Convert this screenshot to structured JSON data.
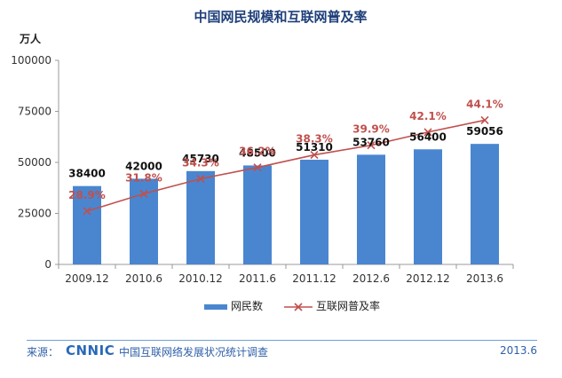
{
  "chart_data": {
    "type": "bar",
    "title": "中国网民规模和互联网普及率",
    "ylabel": "万人",
    "ylim": [
      0,
      100000
    ],
    "yticks": [
      "0",
      "25000",
      "50000",
      "75000",
      "100000"
    ],
    "categories": [
      "2009.12",
      "2010.6",
      "2010.12",
      "2011.6",
      "2011.12",
      "2012.6",
      "2012.12",
      "2013.6"
    ],
    "series": [
      {
        "name": "网民数",
        "kind": "bar",
        "values": [
          38400,
          42000,
          45730,
          48500,
          51310,
          53760,
          56400,
          59056
        ],
        "labels": [
          "38400",
          "42000",
          "45730",
          "48500",
          "51310",
          "53760",
          "56400",
          "59056"
        ],
        "color": "#4a86d0"
      },
      {
        "name": "互联网普及率",
        "kind": "line",
        "values": [
          28.9,
          31.8,
          34.3,
          36.2,
          38.3,
          39.9,
          42.1,
          44.1
        ],
        "labels": [
          "28.9%",
          "31.8%",
          "34.3%",
          "36.2%",
          "38.3%",
          "39.9%",
          "42.1%",
          "44.1%"
        ],
        "color": "#c0504d"
      }
    ],
    "legend_position": "bottom",
    "grid": false
  },
  "footer": {
    "source_label": "来源：",
    "logo_text": "CNNIC",
    "survey_text": "中国互联网络发展状况统计调查",
    "date_text": "2013.6"
  }
}
